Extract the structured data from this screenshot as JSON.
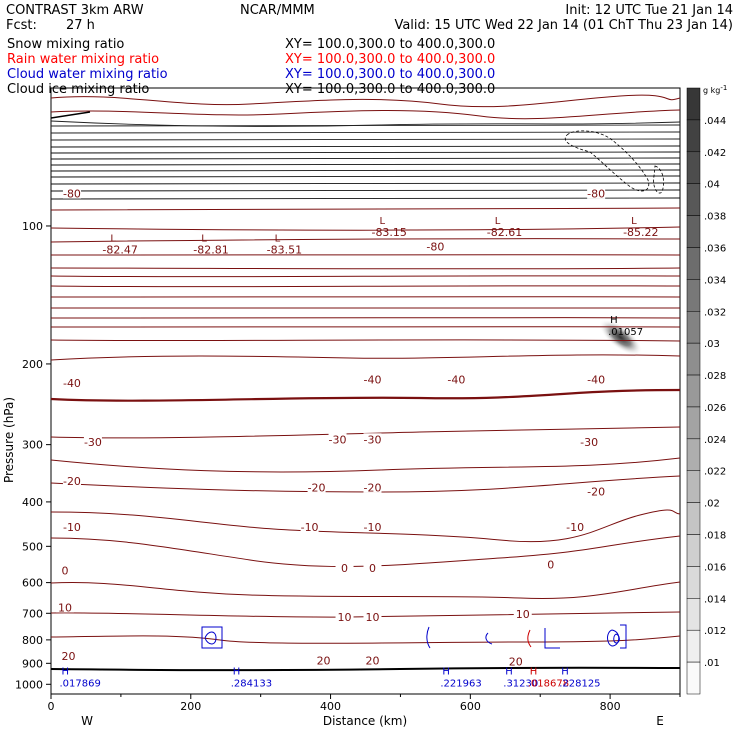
{
  "header": {
    "model": "CONTRAST  3km ARW",
    "center": "NCAR/MMM",
    "init": "Init: 12 UTC Tue 21 Jan 14",
    "fcst_label": "Fcst:",
    "fcst_value": "27 h",
    "valid": "Valid: 15 UTC Wed 22 Jan 14 (01 ChT Thu 23 Jan 14)"
  },
  "legend": [
    {
      "name": "Snow mixing ratio",
      "xy": "XY= 100.0,300.0 to 400.0,300.0",
      "color": "#000000"
    },
    {
      "name": "Rain water mixing ratio",
      "xy": "XY= 100.0,300.0 to 400.0,300.0",
      "color": "#ff0000"
    },
    {
      "name": "Cloud water mixing ratio",
      "xy": "XY= 100.0,300.0 to 400.0,300.0",
      "color": "#0000cc"
    },
    {
      "name": "Cloud ice mixing ratio",
      "xy": "XY= 100.0,300.0 to 400.0,300.0",
      "color": "#000000"
    }
  ],
  "axes": {
    "ylabel": "Pressure (hPa)",
    "xlabel": "Distance (km)",
    "west": "W",
    "east": "E"
  },
  "colorbar": {
    "unit_main": "g kg",
    "unit_exp": "-1",
    "labels": [
      ".044",
      ".042",
      ".04",
      ".038",
      ".036",
      ".034",
      ".032",
      ".03",
      ".028",
      ".026",
      ".024",
      ".022",
      ".02",
      ".018",
      ".016",
      ".014",
      ".012",
      ".01"
    ]
  },
  "colors": {
    "temperature": "#7a1010",
    "cloud_water": "#0000cc",
    "rain": "#cc0000"
  },
  "chart_data": {
    "type": "contour",
    "x_range": [
      0,
      900
    ],
    "x_ticks": [
      0,
      200,
      400,
      600,
      800
    ],
    "y_range": [
      50,
      1050
    ],
    "y_scale": "log-pressure",
    "y_ticks": [
      100,
      200,
      300,
      400,
      500,
      600,
      700,
      800,
      900,
      1000
    ],
    "isotherm_labels": [
      {
        "text": "-80",
        "x": 30,
        "p": 85
      },
      {
        "text": "-80",
        "x": 780,
        "p": 85
      },
      {
        "text": "-80",
        "x": 550,
        "p": 111
      },
      {
        "text": "-40",
        "x": 30,
        "p": 220
      },
      {
        "text": "-40",
        "x": 460,
        "p": 216
      },
      {
        "text": "-40",
        "x": 580,
        "p": 216
      },
      {
        "text": "-40",
        "x": 780,
        "p": 216
      },
      {
        "text": "-30",
        "x": 60,
        "p": 296
      },
      {
        "text": "-30",
        "x": 410,
        "p": 292
      },
      {
        "text": "-30",
        "x": 460,
        "p": 292
      },
      {
        "text": "-30",
        "x": 770,
        "p": 296
      },
      {
        "text": "-20",
        "x": 30,
        "p": 360
      },
      {
        "text": "-20",
        "x": 380,
        "p": 372
      },
      {
        "text": "-20",
        "x": 460,
        "p": 372
      },
      {
        "text": "-20",
        "x": 780,
        "p": 380
      },
      {
        "text": "-10",
        "x": 30,
        "p": 454
      },
      {
        "text": "-10",
        "x": 370,
        "p": 454
      },
      {
        "text": "-10",
        "x": 460,
        "p": 454
      },
      {
        "text": "-10",
        "x": 750,
        "p": 454
      },
      {
        "text": "0",
        "x": 20,
        "p": 565
      },
      {
        "text": "0",
        "x": 420,
        "p": 558
      },
      {
        "text": "0",
        "x": 460,
        "p": 558
      },
      {
        "text": "0",
        "x": 715,
        "p": 548
      },
      {
        "text": "10",
        "x": 20,
        "p": 680
      },
      {
        "text": "10",
        "x": 420,
        "p": 714
      },
      {
        "text": "10",
        "x": 460,
        "p": 714
      },
      {
        "text": "10",
        "x": 675,
        "p": 703
      },
      {
        "text": "20",
        "x": 25,
        "p": 868
      },
      {
        "text": "20",
        "x": 390,
        "p": 888
      },
      {
        "text": "20",
        "x": 460,
        "p": 888
      },
      {
        "text": "20",
        "x": 665,
        "p": 892
      }
    ],
    "lows": [
      {
        "label": "L",
        "x": 85,
        "p": 108,
        "value": "-82.47"
      },
      {
        "label": "L",
        "x": 215,
        "p": 108,
        "value": "-82.81"
      },
      {
        "label": "L",
        "x": 320,
        "p": 108,
        "value": "-83.51"
      },
      {
        "label": "L",
        "x": 470,
        "p": 99,
        "value": "-83.15"
      },
      {
        "label": "L",
        "x": 635,
        "p": 99,
        "value": "-82.61"
      },
      {
        "label": "L",
        "x": 830,
        "p": 99,
        "value": "-85.22"
      }
    ],
    "highs": [
      {
        "label": "H",
        "x": 800,
        "p": 163,
        "value": ".01057"
      },
      {
        "label": "H",
        "x": 15,
        "p": 952,
        "value": ".017869"
      },
      {
        "label": "H",
        "x": 260,
        "p": 953,
        "value": ".284133"
      },
      {
        "label": "H",
        "x": 560,
        "p": 953,
        "value": ".221963"
      },
      {
        "label": "H",
        "x": 650,
        "p": 953,
        "value": ".31230"
      },
      {
        "label": "H",
        "x": 685,
        "p": 953,
        "value": ".018678"
      },
      {
        "label": "H",
        "x": 730,
        "p": 953,
        "value": ".228125"
      }
    ],
    "snow_max": {
      "x": 815,
      "p": 175
    }
  }
}
